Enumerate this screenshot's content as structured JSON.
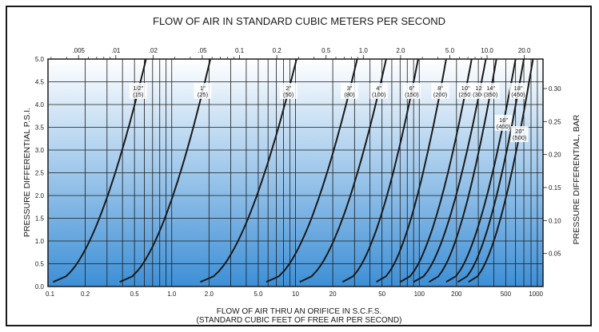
{
  "chart_data": {
    "type": "line",
    "title": "FLOW OF AIR IN STANDARD CUBIC METERS PER SECOND",
    "xlabel": "FLOW OF AIR THRU AN ORIFICE IN S.C.F.S.",
    "xlabel_sub": "(STANDARD CUBIC FEET OF FREE AIR PER SECOND)",
    "ylabel": "PRESSURE DIFFERENTIAL P.S.I.",
    "ylabel_right": "PRESSURE DIFFERENTIAL, BAR",
    "x_scale": "log",
    "xlim": [
      0.1,
      1000
    ],
    "ylim": [
      0.0,
      5.0
    ],
    "bottom_ticks": [
      {
        "v": 0.1,
        "label": "0.1"
      },
      {
        "v": 0.2,
        "label": "0.2"
      },
      {
        "v": 0.5,
        "label": "0.5"
      },
      {
        "v": 1,
        "label": "1.0"
      },
      {
        "v": 2,
        "label": "2.0"
      },
      {
        "v": 5,
        "label": "5.0"
      },
      {
        "v": 10,
        "label": "10"
      },
      {
        "v": 20,
        "label": "20"
      },
      {
        "v": 50,
        "label": "50"
      },
      {
        "v": 100,
        "label": "100"
      },
      {
        "v": 200,
        "label": "200"
      },
      {
        "v": 500,
        "label": "500"
      },
      {
        "v": 1000,
        "label": "1000"
      }
    ],
    "left_ticks": [
      {
        "v": 0.0,
        "label": "0.0"
      },
      {
        "v": 0.5,
        "label": "0.5"
      },
      {
        "v": 1.0,
        "label": "1.0"
      },
      {
        "v": 1.5,
        "label": "1.5"
      },
      {
        "v": 2.0,
        "label": "2.0"
      },
      {
        "v": 2.5,
        "label": "2.5"
      },
      {
        "v": 3.0,
        "label": "3.0"
      },
      {
        "v": 3.5,
        "label": "3.5"
      },
      {
        "v": 4.0,
        "label": "4.0"
      },
      {
        "v": 4.5,
        "label": "4.5"
      },
      {
        "v": 5.0,
        "label": "5.0"
      }
    ],
    "top_ticks": [
      {
        "v": 0.005,
        "label": ".005"
      },
      {
        "v": 0.01,
        "label": ".01"
      },
      {
        "v": 0.02,
        "label": ".02"
      },
      {
        "v": 0.05,
        "label": ".05"
      },
      {
        "v": 0.1,
        "label": "0.1"
      },
      {
        "v": 0.2,
        "label": "0.2"
      },
      {
        "v": 0.5,
        "label": "0.5"
      },
      {
        "v": 1.0,
        "label": "1.0"
      },
      {
        "v": 2.0,
        "label": "2.0"
      },
      {
        "v": 5.0,
        "label": "5.0"
      },
      {
        "v": 10.0,
        "label": "10.0"
      },
      {
        "v": 20.0,
        "label": "20.0"
      }
    ],
    "right_ticks": [
      {
        "v": 0.05,
        "label": "0.05"
      },
      {
        "v": 0.1,
        "label": "0.10"
      },
      {
        "v": 0.15,
        "label": "0.15"
      },
      {
        "v": 0.2,
        "label": "0.20"
      },
      {
        "v": 0.25,
        "label": "0.25"
      },
      {
        "v": 0.3,
        "label": "0.30"
      }
    ],
    "gridlines_x": [
      0.2,
      0.3,
      0.4,
      0.5,
      0.6,
      0.7,
      0.8,
      0.9,
      1,
      2,
      3,
      4,
      5,
      6,
      7,
      8,
      9,
      10,
      20,
      30,
      40,
      50,
      60,
      70,
      80,
      90,
      100,
      200,
      300,
      400,
      500,
      600,
      700,
      800,
      900
    ],
    "series": [
      {
        "name": "1/2\"",
        "metric": "(15)",
        "x_start": 0.11,
        "x_end": 0.62
      },
      {
        "name": "1\"",
        "metric": "(25)",
        "x_start": 0.38,
        "x_end": 2.05
      },
      {
        "name": "2\"",
        "metric": "(50)",
        "x_start": 1.7,
        "x_end": 10.2
      },
      {
        "name": "3\"",
        "metric": "(80)",
        "x_start": 5.8,
        "x_end": 31.5
      },
      {
        "name": "4\"",
        "metric": "(100)",
        "x_start": 10.8,
        "x_end": 54
      },
      {
        "name": "6\"",
        "metric": "(150)",
        "x_start": 24,
        "x_end": 98
      },
      {
        "name": "8\"",
        "metric": "(200)",
        "x_start": 45,
        "x_end": 165
      },
      {
        "name": "10\"",
        "metric": "(250)",
        "x_start": 70,
        "x_end": 265
      },
      {
        "name": "12\"",
        "metric": "(300)",
        "x_start": 90,
        "x_end": 345
      },
      {
        "name": "14\"",
        "metric": "(350)",
        "x_start": 120,
        "x_end": 420
      },
      {
        "name": "16\"",
        "metric": "(400)",
        "x_start": 165,
        "x_end": 600
      },
      {
        "name": "18\"",
        "metric": "(450)",
        "x_start": 205,
        "x_end": 700
      },
      {
        "name": "20\"",
        "metric": "(500)",
        "x_start": 250,
        "x_end": 830
      }
    ],
    "series_y_top": 5.0,
    "series_y_bottom": 0.1,
    "grid": true,
    "background": {
      "top": "#ffffff",
      "bottom": "#3d8fd6"
    },
    "line_color": "#1a1a1a"
  }
}
